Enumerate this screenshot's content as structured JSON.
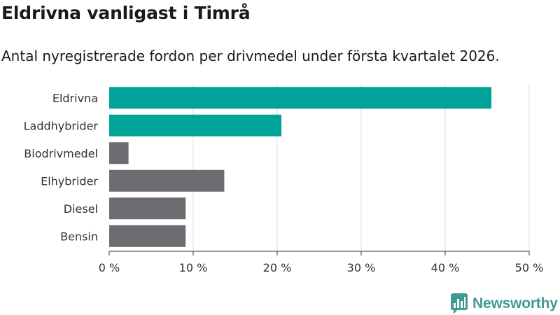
{
  "header": {
    "title": "Eldrivna vanligast i Timrå",
    "subtitle": "Antal nyregistrerade fordon per drivmedel under första kvartalet 2026."
  },
  "branding": {
    "name": "Newsworthy",
    "color": "#3e9b93"
  },
  "chart_data": {
    "type": "bar",
    "orientation": "horizontal",
    "categories": [
      "Eldrivna",
      "Laddhybrider",
      "Biodrivmedel",
      "Elhybrider",
      "Diesel",
      "Bensin"
    ],
    "values": [
      45.5,
      20.5,
      2.3,
      13.7,
      9.1,
      9.1
    ],
    "highlight": [
      true,
      true,
      false,
      false,
      false,
      false
    ],
    "colors": {
      "highlight": "#00a398",
      "default": "#6d6c72",
      "grid": "#dddddd",
      "axis": "#333333"
    },
    "xlim": [
      0,
      50
    ],
    "xticks": [
      0,
      10,
      20,
      30,
      40,
      50
    ],
    "xtick_labels": [
      "0 %",
      "10 %",
      "20 %",
      "30 %",
      "40 %",
      "50 %"
    ],
    "grid": true
  }
}
